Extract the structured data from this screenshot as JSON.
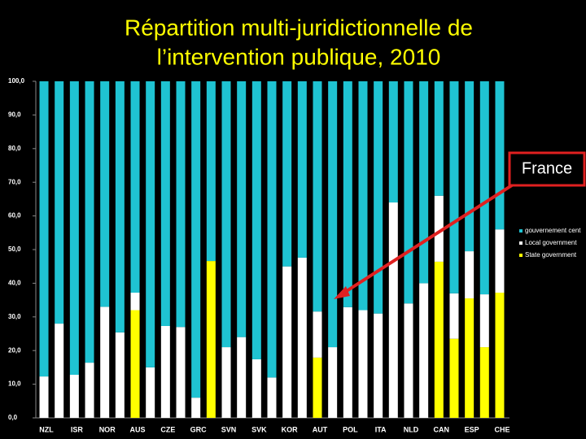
{
  "chart_data": {
    "type": "stacked_bar",
    "title": [
      "Répartition multi-juridictionnelle de",
      "l’intervention publique, 2010"
    ],
    "categories": [
      "NZL",
      null,
      "ISR",
      null,
      "NOR",
      null,
      "AUS",
      null,
      "CZE",
      null,
      "GRC",
      null,
      "SVN",
      null,
      "SVK",
      null,
      "KOR",
      null,
      "AUT",
      null,
      "POL",
      null,
      "ITA",
      null,
      "NLD",
      null,
      "CAN",
      null,
      "ESP",
      null,
      "CHE"
    ],
    "series": [
      {
        "name": "gouvernement cent",
        "color": "#1fc3d2",
        "values": [
          87.7,
          72,
          87.2,
          83.6,
          67,
          74.6,
          62.8,
          85,
          72.7,
          73,
          94,
          53.4,
          79,
          76,
          82.6,
          88,
          55,
          52.4,
          68.4,
          79,
          67.1,
          68,
          69,
          36,
          66,
          60,
          34,
          63,
          50.5,
          63.3,
          44
        ]
      },
      {
        "name": "Local government",
        "color": "#ffffff",
        "values": [
          12.3,
          28,
          12.8,
          16.4,
          33,
          25.4,
          5.2,
          15,
          27.3,
          27,
          6,
          0,
          21,
          24,
          17.4,
          12,
          45,
          47.6,
          13.7,
          21,
          32.9,
          32,
          31,
          64,
          34,
          40,
          19.6,
          13.5,
          14,
          15.7,
          18.8
        ]
      },
      {
        "name": "State government",
        "color": "#ffff00",
        "values": [
          0,
          0,
          0,
          0,
          0,
          0,
          32,
          0,
          0,
          0,
          0,
          46.6,
          0,
          0,
          0,
          0,
          0,
          0,
          17.9,
          0,
          0,
          0,
          0,
          0,
          0,
          0,
          46.4,
          23.5,
          35.5,
          21,
          37.2
        ]
      }
    ],
    "ylim": [
      0,
      100
    ],
    "yticks": [
      {
        "value": 0,
        "label": "0,0"
      },
      {
        "value": 10,
        "label": "10,0"
      },
      {
        "value": 20,
        "label": "20,0"
      },
      {
        "value": 30,
        "label": "30,0"
      },
      {
        "value": 40,
        "label": "40,0"
      },
      {
        "value": 50,
        "label": "50,0"
      },
      {
        "value": 60,
        "label": "60,0"
      },
      {
        "value": 70,
        "label": "70,0"
      },
      {
        "value": 80,
        "label": "80,0"
      },
      {
        "value": 90,
        "label": "90,0"
      },
      {
        "value": 100,
        "label": "100,0"
      }
    ],
    "annotation": "France"
  }
}
